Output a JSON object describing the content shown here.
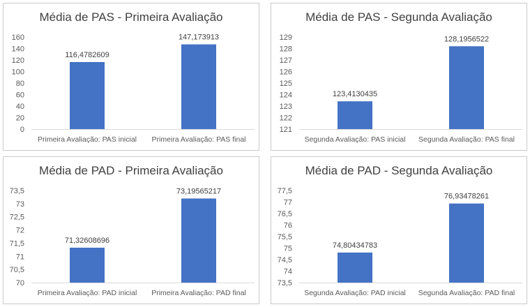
{
  "chart_data": [
    {
      "type": "bar",
      "title": "Média de PAS - Primeira Avaliação",
      "categories": [
        "Primeira Avaliação: PAS inicial",
        "Primeira Avaliação: PAS final"
      ],
      "values": [
        116.4782609,
        147.173913
      ],
      "value_labels": [
        "116,4782609",
        "147,173913"
      ],
      "ylim": [
        0,
        160
      ],
      "yticks": [
        0,
        20,
        40,
        60,
        80,
        100,
        120,
        140,
        160
      ],
      "ytick_labels": [
        "0",
        "20",
        "40",
        "60",
        "80",
        "100",
        "120",
        "140",
        "160"
      ],
      "grid": false,
      "bar_color": "#4472c4"
    },
    {
      "type": "bar",
      "title": "Média de PAS - Segunda Avaliação",
      "categories": [
        "Segunda Avaliação: PAS inicial",
        "Segunda Avaliação: PAS final"
      ],
      "values": [
        123.4130435,
        128.1956522
      ],
      "value_labels": [
        "123,4130435",
        "128,1956522"
      ],
      "ylim": [
        121,
        129
      ],
      "yticks": [
        121,
        122,
        123,
        124,
        125,
        126,
        127,
        128,
        129
      ],
      "ytick_labels": [
        "121",
        "122",
        "123",
        "124",
        "125",
        "126",
        "127",
        "128",
        "129"
      ],
      "grid": false,
      "bar_color": "#4472c4"
    },
    {
      "type": "bar",
      "title": "Média de PAD - Primeira Avaliação",
      "categories": [
        "Primeira Avaliação: PAD inicial",
        "Primeira Avaliação: PAD final"
      ],
      "values": [
        71.32608696,
        73.19565217
      ],
      "value_labels": [
        "71,32608696",
        "73,19565217"
      ],
      "ylim": [
        70,
        73.5
      ],
      "yticks": [
        70,
        70.5,
        71,
        71.5,
        72,
        72.5,
        73,
        73.5
      ],
      "ytick_labels": [
        "70",
        "70,5",
        "71",
        "71,5",
        "72",
        "72,5",
        "73",
        "73,5"
      ],
      "grid": false,
      "bar_color": "#4472c4"
    },
    {
      "type": "bar",
      "title": "Média de PAD - Segunda Avaliação",
      "categories": [
        "Segunda Avaliação: PAD inicial",
        "Segunda Avaliação: PAD final"
      ],
      "values": [
        74.80434783,
        76.93478261
      ],
      "value_labels": [
        "74,80434783",
        "76,93478261"
      ],
      "ylim": [
        73.5,
        77.5
      ],
      "yticks": [
        73.5,
        74,
        74.5,
        75,
        75.5,
        76,
        76.5,
        77,
        77.5
      ],
      "ytick_labels": [
        "73,5",
        "74",
        "74,5",
        "75",
        "75,5",
        "76",
        "76,5",
        "77",
        "77,5"
      ],
      "grid": false,
      "bar_color": "#4472c4"
    }
  ]
}
